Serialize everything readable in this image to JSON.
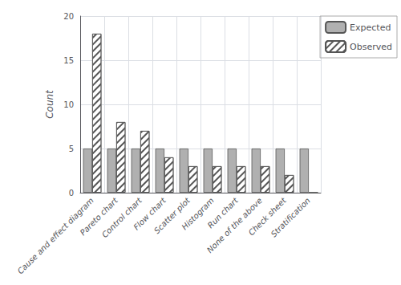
{
  "chart_data": {
    "type": "bar",
    "categories": [
      "Cause and effect diagram",
      "Pareto chart",
      "Control chart",
      "Flow chart",
      "Scatter plot",
      "Histogram",
      "Run chart",
      "None of the above",
      "Check sheet",
      "Stratification"
    ],
    "series": [
      {
        "name": "Expected",
        "color": "#b0b0b0",
        "values": [
          5,
          5,
          5,
          5,
          5,
          5,
          5,
          5,
          5,
          5
        ]
      },
      {
        "name": "Observed",
        "color": "#ffffff",
        "values": [
          18,
          8,
          7,
          4,
          3,
          3,
          3,
          3,
          2,
          0
        ]
      }
    ],
    "ylabel": "Count",
    "ylim": [
      0,
      20
    ],
    "yticks": [
      0,
      5,
      10,
      15,
      20
    ],
    "grid": true,
    "legend": "upper right"
  }
}
